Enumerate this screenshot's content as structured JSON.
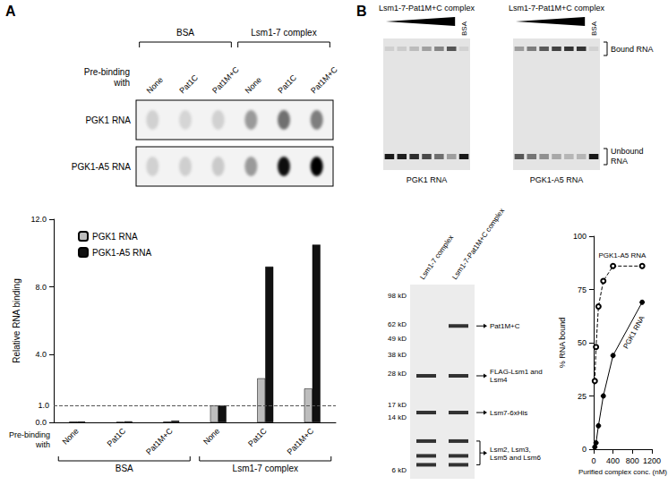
{
  "panels": [
    "A",
    "B"
  ],
  "chart_data": [
    {
      "type": "bar",
      "x_label": "Pre-binding with",
      "y_label": "Relative RNA binding",
      "categories": [
        "None",
        "Pat1C",
        "Pat1M+C",
        "None",
        "Pat1C",
        "Pat1M+C"
      ],
      "category_groups": [
        "BSA",
        "Lsm1-7 complex"
      ],
      "series": [
        {
          "name": "PGK1 RNA",
          "color": "#bdbdbd",
          "values": [
            0.05,
            0.02,
            0.05,
            1.0,
            2.6,
            2.0
          ]
        },
        {
          "name": "PGK1-A5 RNA",
          "color": "#111111",
          "values": [
            0.05,
            0.06,
            0.1,
            1.0,
            9.2,
            10.5
          ]
        }
      ],
      "ylim": [
        0,
        12
      ],
      "yticks": [
        {
          "value": 0,
          "label": "0.0"
        },
        {
          "value": 4,
          "label": "4.0"
        },
        {
          "value": 8,
          "label": "8.0"
        },
        {
          "value": 12,
          "label": "12.0"
        }
      ],
      "reference_line": {
        "value": 1.0,
        "label": "1.0"
      },
      "legend": "upper left",
      "grid": false
    },
    {
      "type": "line",
      "x_label": "Purified complex conc. (nM)",
      "y_label": "% RNA bound",
      "x": [
        25,
        50,
        100,
        200,
        400,
        1000
      ],
      "series": [
        {
          "name": "PGK1 RNA",
          "color": "#000000",
          "marker": "filled",
          "line_style": "solid",
          "values": [
            1,
            3,
            11,
            25,
            44,
            69
          ]
        },
        {
          "name": "PGK1-A5 RNA",
          "color": "#000000",
          "marker": "open",
          "line_style": "dashed",
          "values": [
            32,
            48,
            67,
            79,
            86,
            86
          ]
        }
      ],
      "xlim": [
        0,
        1200
      ],
      "xticks": [
        0,
        400,
        800,
        1200
      ],
      "ylim": [
        0,
        100
      ],
      "yticks": [
        0,
        25,
        50,
        75,
        100
      ],
      "grid": false
    }
  ],
  "emsa": {
    "title": "Lsm1-7-Pat1M+C complex",
    "control": "BSA",
    "bands": [
      "Bound RNA",
      "Unbound RNA"
    ],
    "gels": [
      "PGK1 RNA",
      "PGK1-A5 RNA"
    ]
  },
  "sds_page": {
    "lanes": [
      "Lsm1-7 complex",
      "Lsm1-7-Pat1M+C complex"
    ],
    "markers": [
      {
        "value": 98,
        "label": "98 kD"
      },
      {
        "value": 62,
        "label": "62 kD"
      },
      {
        "value": 49,
        "label": "49 kD"
      },
      {
        "value": 38,
        "label": "38 kD"
      },
      {
        "value": 28,
        "label": "28 kD"
      },
      {
        "value": 17,
        "label": "17 kD"
      },
      {
        "value": 14,
        "label": "14 kD"
      },
      {
        "value": 6,
        "label": "6 kD"
      }
    ],
    "bands": [
      {
        "label": "Pat1M+C",
        "kd": [
          60
        ],
        "in_lanes": [
          "Lsm1-7-Pat1M+C complex"
        ]
      },
      {
        "label": "FLAG-Lsm1 and Lsm4",
        "kd": [
          27
        ],
        "in_lanes": [
          "Lsm1-7 complex",
          "Lsm1-7-Pat1M+C complex"
        ]
      },
      {
        "label": "Lsm7-6xHis",
        "kd": [
          15
        ],
        "in_lanes": [
          "Lsm1-7 complex",
          "Lsm1-7-Pat1M+C complex"
        ]
      },
      {
        "label": "Lsm2, Lsm3, Lsm5 and Lsm6",
        "kd": [
          9.5,
          7.5,
          6.5
        ],
        "in_lanes": [
          "Lsm1-7 complex",
          "Lsm1-7-Pat1M+C complex"
        ]
      }
    ]
  }
}
